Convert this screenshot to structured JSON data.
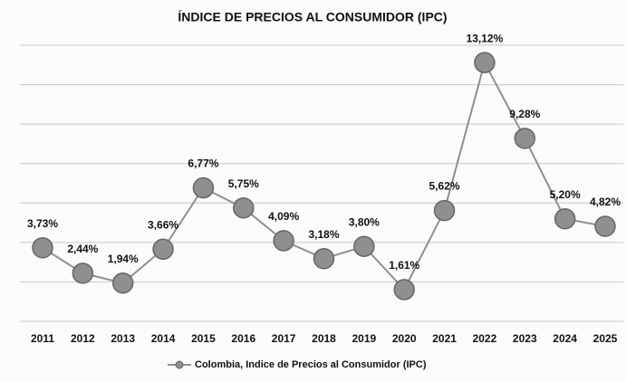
{
  "chart_data": {
    "type": "line",
    "title": "ÍNDICE DE PRECIOS AL CONSUMIDOR (IPC)",
    "categories": [
      "2011",
      "2012",
      "2013",
      "2014",
      "2015",
      "2016",
      "2017",
      "2018",
      "2019",
      "2020",
      "2021",
      "2022",
      "2023",
      "2024",
      "2025"
    ],
    "series": [
      {
        "name": "Colombia, Indice de Precios al Consumidor (IPC)",
        "color": "#8f8f8f",
        "values": [
          3.73,
          2.44,
          1.94,
          3.66,
          6.77,
          5.75,
          4.09,
          3.18,
          3.8,
          1.61,
          5.62,
          13.12,
          9.28,
          5.2,
          4.82
        ],
        "value_labels": [
          "3,73%",
          "2,44%",
          "1,94%",
          "3,66%",
          "6,77%",
          "5,75%",
          "4,09%",
          "3,18%",
          "3,80%",
          "1,61%",
          "5,62%",
          "13,12%",
          "9,28%",
          "5,20%",
          "4,82%"
        ]
      }
    ],
    "ylim": [
      0,
      14
    ],
    "yticks": [
      0,
      2,
      4,
      6,
      8,
      10,
      12,
      14
    ],
    "grid": true,
    "legend": "bottom"
  }
}
